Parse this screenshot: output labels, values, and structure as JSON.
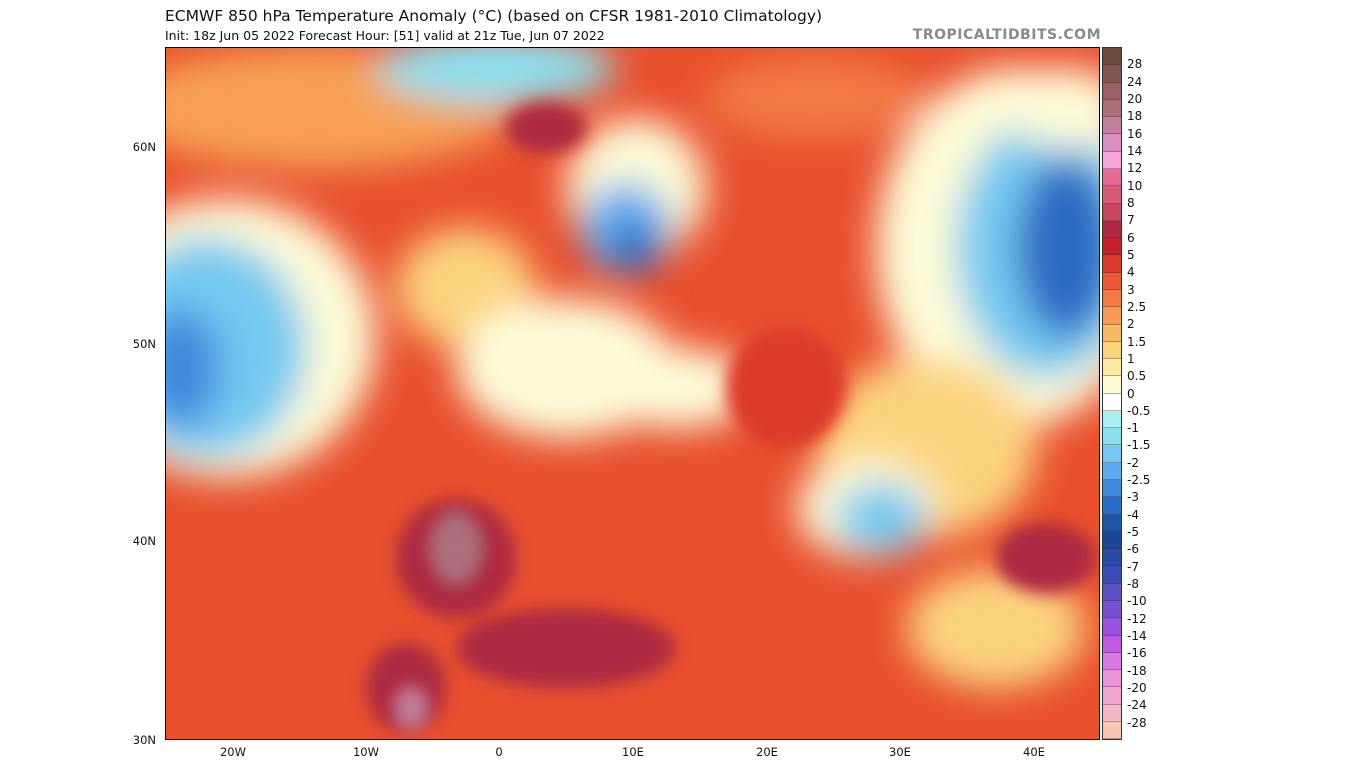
{
  "header": {
    "title": "ECMWF 850 hPa Temperature Anomaly (°C) (based on CFSR 1981-2010 Climatology)",
    "subtitle": "Init: 18z Jun 05 2022   Forecast Hour: [51]   valid at 21z Tue, Jun 07 2022",
    "watermark": "TROPICALTIDBITS.COM"
  },
  "map": {
    "latitude_labels": [
      "60N",
      "50N",
      "40N",
      "30N"
    ],
    "longitude_labels": [
      "20W",
      "10W",
      "0",
      "10E",
      "20E",
      "30E",
      "40E"
    ],
    "extent": {
      "lon": [
        -25,
        45
      ],
      "lat": [
        30,
        65
      ]
    }
  },
  "colorbar": {
    "labels": [
      "28",
      "24",
      "20",
      "18",
      "16",
      "14",
      "12",
      "10",
      "8",
      "7",
      "6",
      "5",
      "4",
      "3",
      "2.5",
      "2",
      "1.5",
      "1",
      "0.5",
      "0",
      "-0.5",
      "-1",
      "-1.5",
      "-2",
      "-2.5",
      "-3",
      "-4",
      "-5",
      "-6",
      "-7",
      "-8",
      "-10",
      "-12",
      "-14",
      "-16",
      "-18",
      "-20",
      "-24",
      "-28"
    ],
    "colors": [
      "#6b4a3a",
      "#855651",
      "#9a6066",
      "#ad6f7e",
      "#c27e9a",
      "#d88ec0",
      "#f7a3dc",
      "#e56b95",
      "#d85a78",
      "#c94760",
      "#ad2a42",
      "#c41f2a",
      "#dc3a2c",
      "#ea5a36",
      "#f27a45",
      "#f69a55",
      "#f9b866",
      "#fbd37e",
      "#fbe9a4",
      "#fdfbd8",
      "#ffffff",
      "#a6efef",
      "#8ce0ee",
      "#74c8f0",
      "#5eaaf0",
      "#3f88dc",
      "#2a6cc4",
      "#1f56a8",
      "#1a4694",
      "#2a4aa8",
      "#3c4cb4",
      "#5a50c4",
      "#7a4ed0",
      "#9a52dc",
      "#c05ae0",
      "#d878e0",
      "#e894d8",
      "#f0a8d0",
      "#f4b8c4",
      "#fac8b0"
    ]
  }
}
